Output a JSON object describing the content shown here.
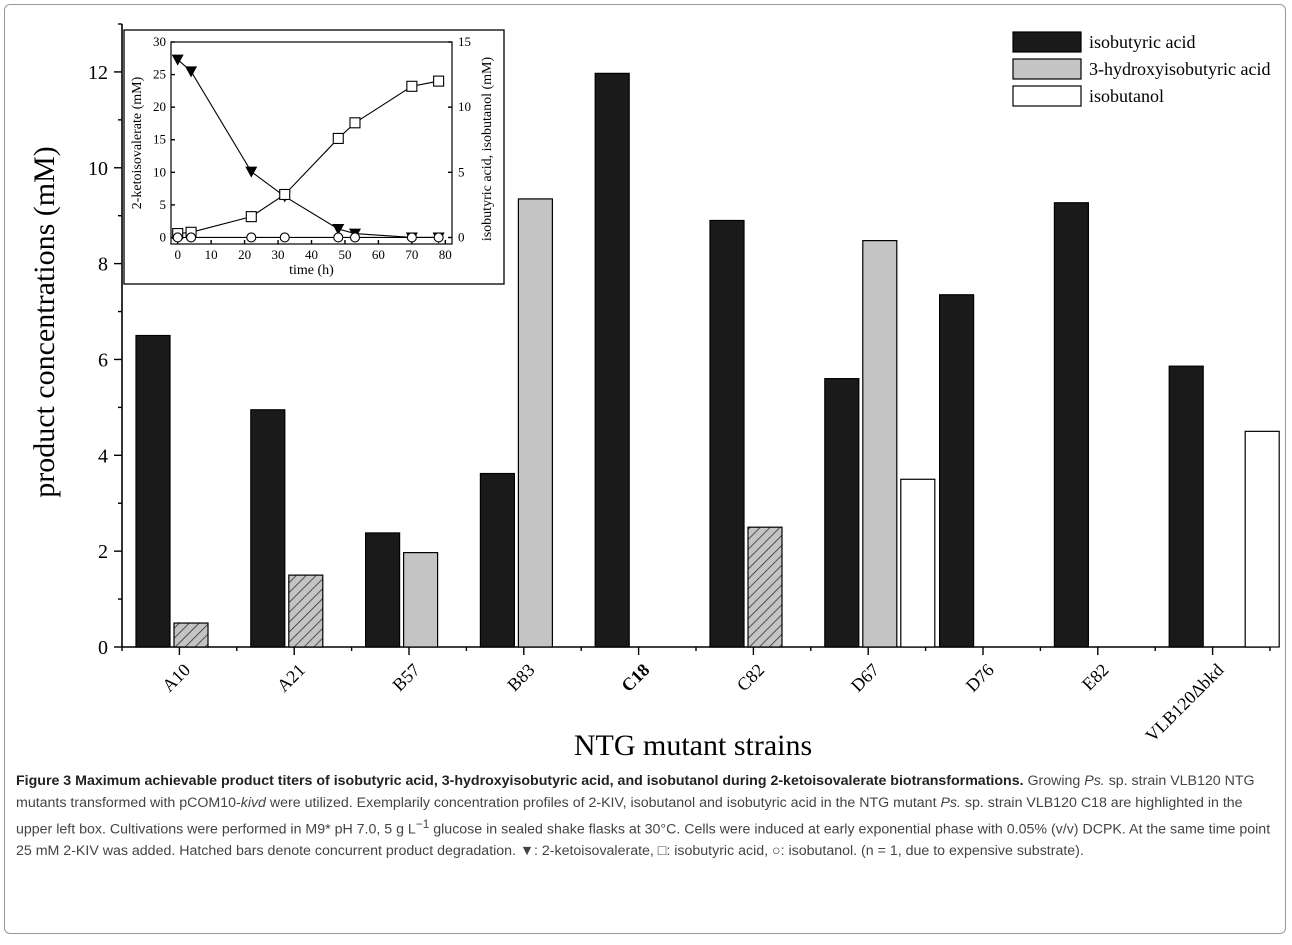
{
  "chart_data": [
    {
      "type": "bar",
      "xlabel": "NTG mutant strains",
      "ylabel": "product concentrations (mM)",
      "ylim": [
        0,
        13
      ],
      "yticks": [
        0,
        2,
        4,
        6,
        8,
        10,
        12
      ],
      "categories": [
        "A10",
        "A21",
        "B57",
        "B83",
        "C18",
        "C82",
        "D67",
        "D76",
        "E82",
        "VLB120Δbkd"
      ],
      "series": [
        {
          "name": "isobutyric acid",
          "color": "#1a1a1a",
          "values": [
            6.5,
            4.95,
            2.38,
            3.62,
            11.97,
            8.9,
            5.6,
            7.35,
            9.27,
            5.86
          ]
        },
        {
          "name": "3-hydroxyisobutyric acid",
          "color": "#c4c4c4",
          "values": [
            0.5,
            1.5,
            1.97,
            9.35,
            null,
            2.5,
            8.48,
            null,
            null,
            null
          ],
          "hatched": [
            true,
            true,
            false,
            false,
            false,
            true,
            false,
            false,
            false,
            false
          ]
        },
        {
          "name": "isobutanol",
          "color": "#ffffff",
          "values": [
            null,
            null,
            null,
            null,
            null,
            null,
            3.5,
            null,
            null,
            4.5
          ]
        }
      ],
      "legend_position": "top-right",
      "grid": false
    },
    {
      "type": "line",
      "xlabel": "time (h)",
      "ylabel": "2-ketoisovalerate (mM)",
      "y2label": "isobutyric acid, isobutanol (mM)",
      "xlim": [
        -2,
        82
      ],
      "ylim": [
        -1,
        30
      ],
      "y2lim": [
        -0.5,
        15
      ],
      "xticks": [
        0,
        10,
        20,
        30,
        40,
        50,
        60,
        70,
        80
      ],
      "yticks": [
        0,
        5,
        10,
        15,
        20,
        25,
        30
      ],
      "y2ticks": [
        0,
        5,
        10,
        15
      ],
      "series": [
        {
          "name": "2-ketoisovalerate",
          "marker": "filled-triangle-down",
          "axis": "left",
          "x": [
            0,
            4,
            22,
            32,
            48,
            53,
            70,
            78
          ],
          "y": [
            27.3,
            25.5,
            10.1,
            6.3,
            1.3,
            0.6,
            0.0,
            0.0
          ]
        },
        {
          "name": "isobutyric acid",
          "marker": "open-square",
          "axis": "right",
          "x": [
            0,
            4,
            22,
            32,
            48,
            53,
            70,
            78
          ],
          "y": [
            0.3,
            0.4,
            1.6,
            3.3,
            7.6,
            8.8,
            11.6,
            12.0
          ]
        },
        {
          "name": "isobutanol",
          "marker": "open-circle",
          "axis": "right",
          "x": [
            0,
            4,
            22,
            32,
            48,
            53,
            70,
            78
          ],
          "y": [
            0,
            0,
            0,
            0,
            0,
            0,
            0,
            0
          ]
        }
      ]
    }
  ],
  "caption": {
    "title": "Figure 3 Maximum achievable product titers of isobutyric acid, 3-hydroxyisobutyric acid, and isobutanol during 2-ketoisovalerate biotransformations.",
    "p1": " Growing ",
    "p2": "Ps.",
    "p3": " sp. strain VLB120 NTG mutants transformed with pCOM10-",
    "p4": "kivd",
    "p5": " were utilized. Exemplarily concentration profiles of 2-KIV, isobutanol and isobutyric acid in the NTG mutant ",
    "p6": "Ps.",
    "p7": " sp. strain VLB120 C18 are highlighted in the upper left box. Cultivations were performed in M9* pH 7.0, 5 g L",
    "p8": "−1",
    "p9": " glucose in sealed shake flasks at 30°C. Cells were induced at early exponential phase with 0.05% (v/v) DCPK. At the same time point 25 mM 2-KIV was added. Hatched bars denote concurrent product degradation. ▼: 2-ketoisovalerate, □: isobutyric acid, ○: isobutanol. (n = 1, due to expensive substrate)."
  }
}
